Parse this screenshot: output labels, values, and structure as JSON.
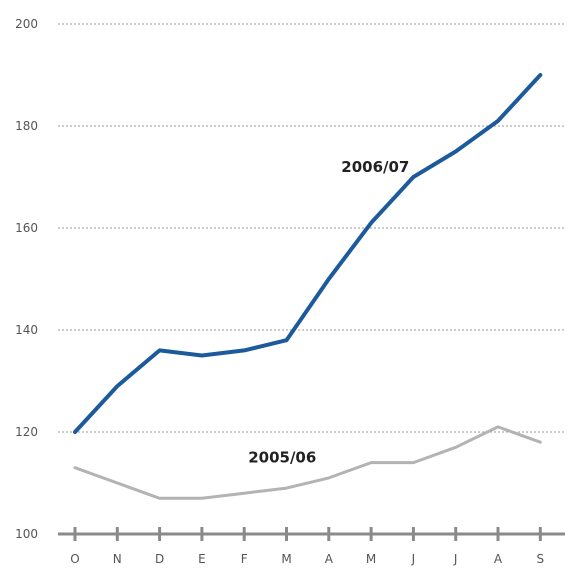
{
  "chart_data": {
    "type": "line",
    "title": "",
    "xlabel": "",
    "ylabel": "",
    "categories": [
      "O",
      "N",
      "D",
      "E",
      "F",
      "M",
      "A",
      "M",
      "J",
      "J",
      "A",
      "S"
    ],
    "ylim": [
      100,
      200
    ],
    "yticks": [
      100,
      120,
      140,
      160,
      180,
      200
    ],
    "grid": true,
    "series": [
      {
        "name": "2006/07",
        "color": "#1d5a9c",
        "values": [
          120,
          129,
          136,
          135,
          136,
          138,
          150,
          161,
          170,
          175,
          181,
          190
        ]
      },
      {
        "name": "2005/06",
        "color": "#b3b3b3",
        "values": [
          113,
          110,
          107,
          107,
          108,
          109,
          111,
          114,
          114,
          117,
          121,
          118
        ]
      }
    ]
  }
}
